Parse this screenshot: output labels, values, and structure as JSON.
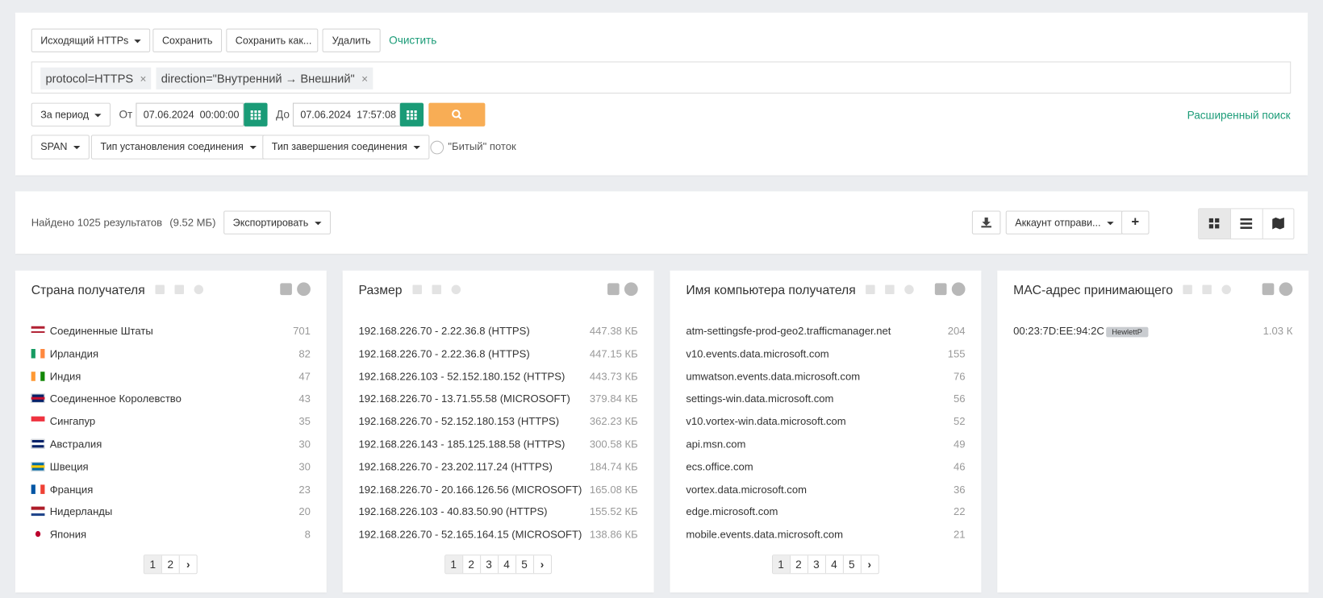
{
  "toolbar": {
    "preset": "Исходящий HTTPs",
    "save": "Сохранить",
    "save_as": "Сохранить как...",
    "delete": "Удалить",
    "clear": "Очистить"
  },
  "filters": [
    "protocol=HTTPS",
    "direction=\"Внутренний → Внешний\""
  ],
  "period": {
    "mode": "За период",
    "from_label": "От",
    "from": "07.06.2024  00:00:00",
    "to_label": "До",
    "to": "07.06.2024  17:57:08",
    "advanced": "Расширенный поиск"
  },
  "options": {
    "capture": "SPAN",
    "setup": "Тип установления соединения",
    "teardown": "Тип завершения соединения",
    "broken": "\"Битый\" поток"
  },
  "results": {
    "found": "Найдено 1025 результатов",
    "size": "(9.52 МБ)",
    "export": "Экспортировать",
    "account": "Аккаунт отправи..."
  },
  "widgets": [
    {
      "title": "Страна получателя",
      "rows": [
        [
          "Соединенные Штаты",
          "701"
        ],
        [
          "Ирландия",
          "82"
        ],
        [
          "Индия",
          "47"
        ],
        [
          "Соединенное Королевство",
          "43"
        ],
        [
          "Сингапур",
          "35"
        ],
        [
          "Австралия",
          "30"
        ],
        [
          "Швеция",
          "30"
        ],
        [
          "Франция",
          "23"
        ],
        [
          "Нидерланды",
          "20"
        ],
        [
          "Япония",
          "8"
        ]
      ],
      "pages": [
        "1",
        "2"
      ]
    },
    {
      "title": "Размер",
      "rows": [
        [
          "192.168.226.70 - 2.22.36.8 (HTTPS)",
          "447.38 КБ"
        ],
        [
          "192.168.226.70 - 2.22.36.8 (HTTPS)",
          "447.15 КБ"
        ],
        [
          "192.168.226.103 - 52.152.180.152 (HTTPS)",
          "443.73 КБ"
        ],
        [
          "192.168.226.70 - 13.71.55.58 (MICROSOFT)",
          "379.84 КБ"
        ],
        [
          "192.168.226.70 - 52.152.180.153 (HTTPS)",
          "362.23 КБ"
        ],
        [
          "192.168.226.143 - 185.125.188.58 (HTTPS)",
          "300.58 КБ"
        ],
        [
          "192.168.226.70 - 23.202.117.24 (HTTPS)",
          "184.74 КБ"
        ],
        [
          "192.168.226.70 - 20.166.126.56 (MICROSOFT)",
          "165.08 КБ"
        ],
        [
          "192.168.226.103 - 40.83.50.90 (HTTPS)",
          "155.52 КБ"
        ],
        [
          "192.168.226.70 - 52.165.164.15 (MICROSOFT)",
          "138.86 КБ"
        ]
      ],
      "pages": [
        "1",
        "2",
        "3",
        "4",
        "5"
      ]
    },
    {
      "title": "Имя компьютера получателя",
      "rows": [
        [
          "atm-settingsfe-prod-geo2.trafficmanager.net",
          "204"
        ],
        [
          "v10.events.data.microsoft.com",
          "155"
        ],
        [
          "umwatson.events.data.microsoft.com",
          "76"
        ],
        [
          "settings-win.data.microsoft.com",
          "56"
        ],
        [
          "v10.vortex-win.data.microsoft.com",
          "52"
        ],
        [
          "api.msn.com",
          "49"
        ],
        [
          "ecs.office.com",
          "46"
        ],
        [
          "vortex.data.microsoft.com",
          "36"
        ],
        [
          "edge.microsoft.com",
          "22"
        ],
        [
          "mobile.events.data.microsoft.com",
          "21"
        ]
      ],
      "pages": [
        "1",
        "2",
        "3",
        "4",
        "5"
      ]
    },
    {
      "title": "MAC-адрес принимающего",
      "rows": [
        [
          "00:23:7D:EE:94:2C",
          "1.03 К"
        ]
      ],
      "badge": "HewlettP"
    }
  ]
}
